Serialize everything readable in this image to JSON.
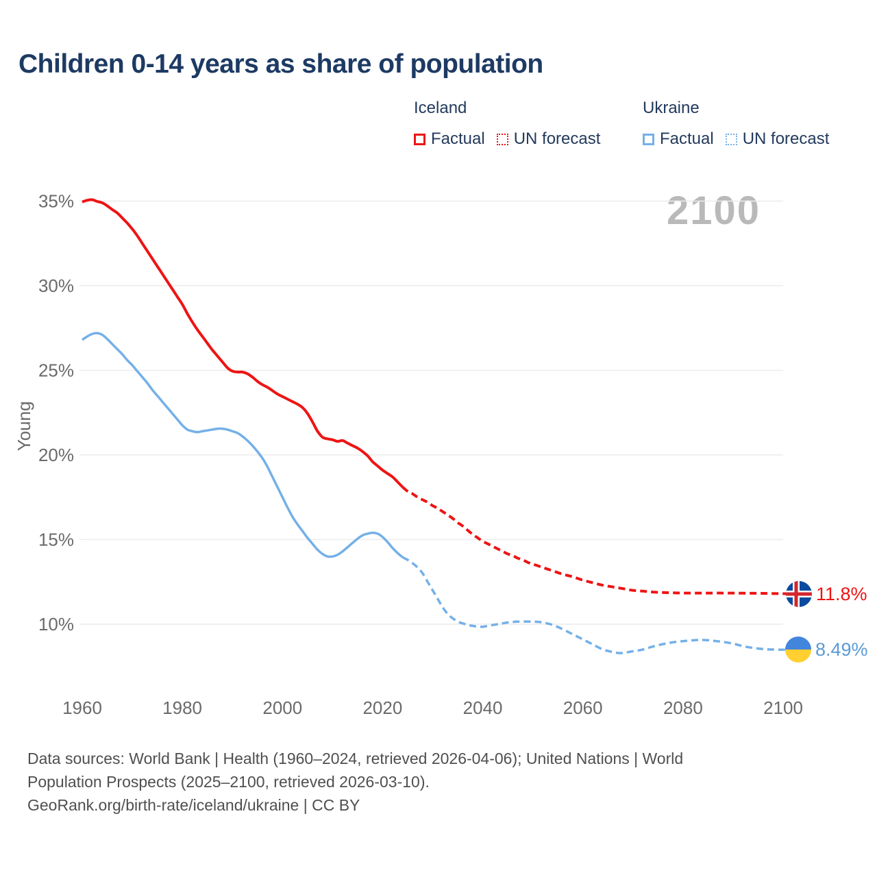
{
  "title": "Children 0-14 years as share of population",
  "watermark_year": "2100",
  "legend": {
    "groups": [
      {
        "country": "Iceland",
        "factual_label": "Factual",
        "forecast_label": "UN forecast"
      },
      {
        "country": "Ukraine",
        "factual_label": "Factual",
        "forecast_label": "UN forecast"
      }
    ]
  },
  "end_labels": {
    "iceland_value": "11.8%",
    "ukraine_value": "8.49%"
  },
  "footer": {
    "line1": "Data sources: World Bank | Health (1960–2024, retrieved 2026-04-06); United Nations | World",
    "line2": "Population Prospects (2025–2100, retrieved 2026-03-10).",
    "line3": "GeoRank.org/birth-rate/iceland/ukraine | CC BY"
  },
  "colors": {
    "iceland": "#ee1414",
    "ukraine": "#74b0e8",
    "grid": "#ececec",
    "axis_text": "#6a6a6a",
    "title_text": "#1d3a63",
    "watermark": "#b9b9b9",
    "footer_text": "#4f4f4f",
    "iceland_flag_blue": "#0a4a9f",
    "iceland_flag_red": "#d4252c",
    "ukraine_flag_blue": "#4285dd",
    "ukraine_flag_yellow": "#ffd02f"
  },
  "chart_data": {
    "type": "line",
    "title": "Children 0-14 years as share of population",
    "xlabel": "",
    "ylabel": "Young",
    "xlim": [
      1960,
      2100
    ],
    "ylim": [
      8,
      36
    ],
    "x_ticks": [
      1960,
      1980,
      2000,
      2020,
      2040,
      2060,
      2080,
      2100
    ],
    "y_ticks": [
      10,
      15,
      20,
      25,
      30,
      35
    ],
    "y_tick_suffix": "%",
    "grid": "horizontal",
    "legend_position": "top-right",
    "series": [
      {
        "name": "Iceland factual",
        "color": "#ee1414",
        "dashed": false,
        "stroke_width": 4,
        "points": [
          [
            1960,
            34.95
          ],
          [
            1961,
            35.05
          ],
          [
            1962,
            35.08
          ],
          [
            1963,
            34.98
          ],
          [
            1964,
            34.9
          ],
          [
            1965,
            34.72
          ],
          [
            1966,
            34.5
          ],
          [
            1967,
            34.3
          ],
          [
            1968,
            34.0
          ],
          [
            1969,
            33.7
          ],
          [
            1970,
            33.35
          ],
          [
            1971,
            32.95
          ],
          [
            1972,
            32.5
          ],
          [
            1973,
            32.05
          ],
          [
            1974,
            31.6
          ],
          [
            1975,
            31.15
          ],
          [
            1976,
            30.7
          ],
          [
            1977,
            30.25
          ],
          [
            1978,
            29.8
          ],
          [
            1979,
            29.35
          ],
          [
            1980,
            28.9
          ],
          [
            1981,
            28.35
          ],
          [
            1982,
            27.85
          ],
          [
            1983,
            27.4
          ],
          [
            1984,
            27.0
          ],
          [
            1985,
            26.6
          ],
          [
            1986,
            26.2
          ],
          [
            1987,
            25.85
          ],
          [
            1988,
            25.5
          ],
          [
            1989,
            25.15
          ],
          [
            1990,
            24.95
          ],
          [
            1991,
            24.9
          ],
          [
            1992,
            24.9
          ],
          [
            1993,
            24.8
          ],
          [
            1994,
            24.6
          ],
          [
            1995,
            24.35
          ],
          [
            1996,
            24.15
          ],
          [
            1997,
            24.0
          ],
          [
            1998,
            23.8
          ],
          [
            1999,
            23.6
          ],
          [
            2000,
            23.45
          ],
          [
            2001,
            23.3
          ],
          [
            2002,
            23.15
          ],
          [
            2003,
            23.0
          ],
          [
            2004,
            22.8
          ],
          [
            2005,
            22.45
          ],
          [
            2006,
            21.95
          ],
          [
            2007,
            21.4
          ],
          [
            2008,
            21.05
          ],
          [
            2009,
            20.95
          ],
          [
            2010,
            20.9
          ],
          [
            2011,
            20.8
          ],
          [
            2012,
            20.85
          ],
          [
            2013,
            20.7
          ],
          [
            2014,
            20.55
          ],
          [
            2015,
            20.4
          ],
          [
            2016,
            20.2
          ],
          [
            2017,
            19.95
          ],
          [
            2018,
            19.6
          ],
          [
            2019,
            19.35
          ],
          [
            2020,
            19.1
          ],
          [
            2021,
            18.9
          ],
          [
            2022,
            18.7
          ],
          [
            2023,
            18.4
          ],
          [
            2024,
            18.1
          ]
        ]
      },
      {
        "name": "Iceland UN forecast",
        "color": "#ee1414",
        "dashed": true,
        "stroke_width": 4,
        "points": [
          [
            2024,
            18.1
          ],
          [
            2025,
            17.85
          ],
          [
            2026,
            17.7
          ],
          [
            2027,
            17.5
          ],
          [
            2028,
            17.35
          ],
          [
            2029,
            17.2
          ],
          [
            2030,
            17.0
          ],
          [
            2031,
            16.85
          ],
          [
            2032,
            16.65
          ],
          [
            2033,
            16.45
          ],
          [
            2034,
            16.25
          ],
          [
            2035,
            16.0
          ],
          [
            2036,
            15.8
          ],
          [
            2037,
            15.55
          ],
          [
            2038,
            15.3
          ],
          [
            2039,
            15.1
          ],
          [
            2040,
            14.9
          ],
          [
            2041,
            14.75
          ],
          [
            2042,
            14.6
          ],
          [
            2043,
            14.45
          ],
          [
            2044,
            14.3
          ],
          [
            2045,
            14.15
          ],
          [
            2046,
            14.05
          ],
          [
            2047,
            13.9
          ],
          [
            2048,
            13.8
          ],
          [
            2049,
            13.65
          ],
          [
            2050,
            13.55
          ],
          [
            2052,
            13.35
          ],
          [
            2054,
            13.15
          ],
          [
            2056,
            12.95
          ],
          [
            2058,
            12.8
          ],
          [
            2060,
            12.6
          ],
          [
            2062,
            12.45
          ],
          [
            2064,
            12.3
          ],
          [
            2066,
            12.2
          ],
          [
            2068,
            12.1
          ],
          [
            2070,
            12.0
          ],
          [
            2072,
            11.95
          ],
          [
            2074,
            11.9
          ],
          [
            2076,
            11.87
          ],
          [
            2078,
            11.85
          ],
          [
            2080,
            11.84
          ],
          [
            2084,
            11.84
          ],
          [
            2088,
            11.84
          ],
          [
            2092,
            11.83
          ],
          [
            2096,
            11.82
          ],
          [
            2100,
            11.8
          ]
        ]
      },
      {
        "name": "Ukraine factual",
        "color": "#74b0e8",
        "dashed": false,
        "stroke_width": 3.5,
        "points": [
          [
            1960,
            26.8
          ],
          [
            1961,
            27.0
          ],
          [
            1962,
            27.15
          ],
          [
            1963,
            27.2
          ],
          [
            1964,
            27.1
          ],
          [
            1965,
            26.85
          ],
          [
            1966,
            26.55
          ],
          [
            1967,
            26.25
          ],
          [
            1968,
            25.95
          ],
          [
            1969,
            25.6
          ],
          [
            1970,
            25.3
          ],
          [
            1971,
            24.95
          ],
          [
            1972,
            24.6
          ],
          [
            1973,
            24.25
          ],
          [
            1974,
            23.85
          ],
          [
            1975,
            23.5
          ],
          [
            1976,
            23.15
          ],
          [
            1977,
            22.8
          ],
          [
            1978,
            22.45
          ],
          [
            1979,
            22.1
          ],
          [
            1980,
            21.75
          ],
          [
            1981,
            21.5
          ],
          [
            1982,
            21.4
          ],
          [
            1983,
            21.35
          ],
          [
            1984,
            21.4
          ],
          [
            1985,
            21.45
          ],
          [
            1986,
            21.5
          ],
          [
            1987,
            21.55
          ],
          [
            1988,
            21.55
          ],
          [
            1989,
            21.5
          ],
          [
            1990,
            21.4
          ],
          [
            1991,
            21.3
          ],
          [
            1992,
            21.1
          ],
          [
            1993,
            20.85
          ],
          [
            1994,
            20.55
          ],
          [
            1995,
            20.2
          ],
          [
            1996,
            19.8
          ],
          [
            1997,
            19.3
          ],
          [
            1998,
            18.7
          ],
          [
            1999,
            18.1
          ],
          [
            2000,
            17.5
          ],
          [
            2001,
            16.9
          ],
          [
            2002,
            16.35
          ],
          [
            2003,
            15.9
          ],
          [
            2004,
            15.5
          ],
          [
            2005,
            15.1
          ],
          [
            2006,
            14.75
          ],
          [
            2007,
            14.4
          ],
          [
            2008,
            14.15
          ],
          [
            2009,
            14.0
          ],
          [
            2010,
            14.0
          ],
          [
            2011,
            14.1
          ],
          [
            2012,
            14.3
          ],
          [
            2013,
            14.55
          ],
          [
            2014,
            14.8
          ],
          [
            2015,
            15.05
          ],
          [
            2016,
            15.25
          ],
          [
            2017,
            15.35
          ],
          [
            2018,
            15.4
          ],
          [
            2019,
            15.35
          ],
          [
            2020,
            15.15
          ],
          [
            2021,
            14.85
          ],
          [
            2022,
            14.5
          ],
          [
            2023,
            14.2
          ],
          [
            2024,
            13.95
          ]
        ]
      },
      {
        "name": "Ukraine UN forecast",
        "color": "#74b0e8",
        "dashed": true,
        "stroke_width": 3.5,
        "points": [
          [
            2024,
            13.95
          ],
          [
            2025,
            13.8
          ],
          [
            2026,
            13.6
          ],
          [
            2027,
            13.35
          ],
          [
            2028,
            13.0
          ],
          [
            2029,
            12.5
          ],
          [
            2030,
            12.0
          ],
          [
            2031,
            11.5
          ],
          [
            2032,
            11.0
          ],
          [
            2033,
            10.6
          ],
          [
            2034,
            10.35
          ],
          [
            2035,
            10.15
          ],
          [
            2036,
            10.05
          ],
          [
            2037,
            9.95
          ],
          [
            2038,
            9.9
          ],
          [
            2039,
            9.85
          ],
          [
            2040,
            9.85
          ],
          [
            2041,
            9.9
          ],
          [
            2042,
            9.95
          ],
          [
            2043,
            10.0
          ],
          [
            2044,
            10.05
          ],
          [
            2045,
            10.1
          ],
          [
            2047,
            10.15
          ],
          [
            2050,
            10.15
          ],
          [
            2052,
            10.1
          ],
          [
            2054,
            9.95
          ],
          [
            2056,
            9.7
          ],
          [
            2058,
            9.4
          ],
          [
            2060,
            9.1
          ],
          [
            2062,
            8.8
          ],
          [
            2064,
            8.5
          ],
          [
            2065,
            8.42
          ],
          [
            2066,
            8.35
          ],
          [
            2067,
            8.3
          ],
          [
            2068,
            8.3
          ],
          [
            2070,
            8.4
          ],
          [
            2072,
            8.5
          ],
          [
            2074,
            8.68
          ],
          [
            2076,
            8.82
          ],
          [
            2078,
            8.93
          ],
          [
            2080,
            9.0
          ],
          [
            2082,
            9.05
          ],
          [
            2084,
            9.07
          ],
          [
            2086,
            9.02
          ],
          [
            2088,
            8.95
          ],
          [
            2090,
            8.85
          ],
          [
            2092,
            8.7
          ],
          [
            2094,
            8.6
          ],
          [
            2096,
            8.53
          ],
          [
            2098,
            8.5
          ],
          [
            2100,
            8.49
          ]
        ]
      }
    ]
  }
}
